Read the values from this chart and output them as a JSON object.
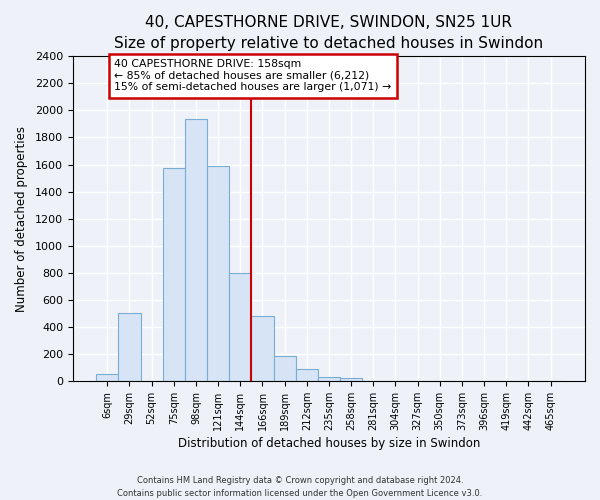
{
  "title": "40, CAPESTHORNE DRIVE, SWINDON, SN25 1UR",
  "subtitle": "Size of property relative to detached houses in Swindon",
  "xlabel": "Distribution of detached houses by size in Swindon",
  "ylabel": "Number of detached properties",
  "bar_labels": [
    "6sqm",
    "29sqm",
    "52sqm",
    "75sqm",
    "98sqm",
    "121sqm",
    "144sqm",
    "166sqm",
    "189sqm",
    "212sqm",
    "235sqm",
    "258sqm",
    "281sqm",
    "304sqm",
    "327sqm",
    "350sqm",
    "373sqm",
    "396sqm",
    "419sqm",
    "442sqm",
    "465sqm"
  ],
  "bar_heights": [
    55,
    500,
    0,
    1575,
    1940,
    1590,
    800,
    480,
    185,
    90,
    30,
    25,
    0,
    0,
    0,
    0,
    0,
    0,
    0,
    0,
    0
  ],
  "bar_color": "#d6e4f5",
  "bar_edge_color": "#7aadd4",
  "vline_after_index": 6,
  "vline_color": "#cc0000",
  "annotation_text": "40 CAPESTHORNE DRIVE: 158sqm\n← 85% of detached houses are smaller (6,212)\n15% of semi-detached houses are larger (1,071) →",
  "annotation_box_color": "white",
  "annotation_box_edge": "#cc0000",
  "ylim": [
    0,
    2400
  ],
  "yticks": [
    0,
    200,
    400,
    600,
    800,
    1000,
    1200,
    1400,
    1600,
    1800,
    2000,
    2200,
    2400
  ],
  "footer1": "Contains HM Land Registry data © Crown copyright and database right 2024.",
  "footer2": "Contains public sector information licensed under the Open Government Licence v3.0.",
  "bg_color": "#eef2f8",
  "plot_bg_color": "#eef2f8",
  "title_fontsize": 11,
  "subtitle_fontsize": 9
}
